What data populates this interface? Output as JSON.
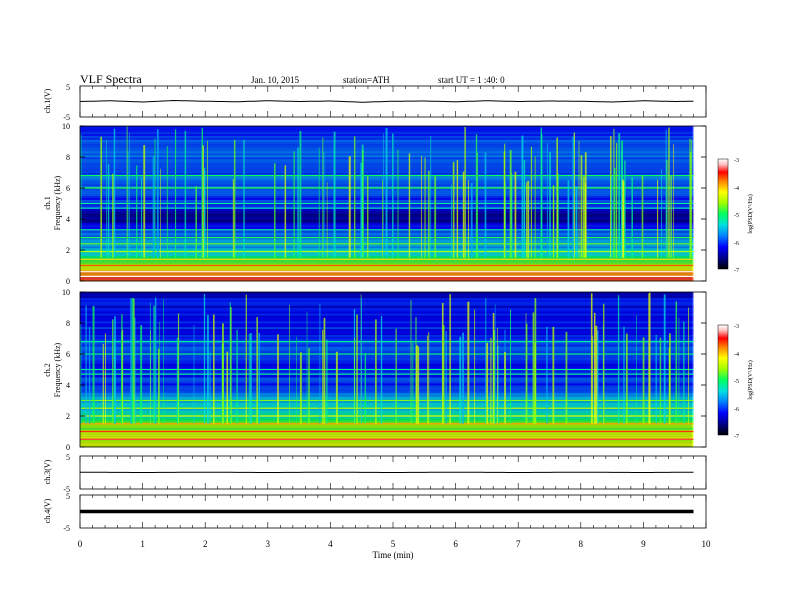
{
  "header": {
    "title": "VLF Spectra",
    "date": "Jan. 10, 2015",
    "station": "station=ATH",
    "start": "start UT = 1 :40: 0"
  },
  "chart_data": [
    {
      "type": "line",
      "ylabel": "ch.1(V)",
      "ylim": [
        -5,
        5
      ],
      "y_ticks": [
        "5",
        "-5"
      ],
      "x": [
        0,
        0.5,
        1,
        1.5,
        2,
        2.5,
        3,
        3.5,
        4,
        4.5,
        5,
        5.5,
        6,
        6.5,
        7,
        7.5,
        8,
        8.5,
        9,
        9.5,
        9.8
      ],
      "y": [
        0.0,
        0.3,
        -0.2,
        0.4,
        0.1,
        -0.1,
        0.3,
        0.0,
        0.2,
        -0.3,
        0.1,
        0.2,
        -0.1,
        0.3,
        0.0,
        0.2,
        0.1,
        -0.2,
        0.3,
        0.0,
        0.1
      ]
    },
    {
      "type": "heatmap",
      "ylabel_lines": [
        "ch.1",
        "Frequency (kHz)"
      ],
      "ylim": [
        0,
        10
      ],
      "y_ticks": [
        "0",
        "2",
        "4",
        "6",
        "8",
        "10"
      ],
      "xlim": [
        0,
        9.8
      ],
      "colorbar": {
        "label": "log(PSD(V²/Hz)",
        "range": [
          -7,
          -3
        ],
        "ticks": [
          "-3",
          "-4",
          "-5",
          "-6",
          "-7"
        ],
        "colors": [
          "#000000",
          "#00008b",
          "#0000ff",
          "#0080ff",
          "#00e0e0",
          "#00ff60",
          "#a0ff00",
          "#ffff00",
          "#ff8000",
          "#ff0000",
          "#ffc0c0",
          "#ffffff"
        ]
      },
      "frequency_profile_kHz": [
        [
          0.1,
          -3.5
        ],
        [
          0.5,
          -3.8
        ],
        [
          1,
          -4.6
        ],
        [
          1.5,
          -5.1
        ],
        [
          2,
          -5.5
        ],
        [
          3,
          -5.9
        ],
        [
          4,
          -6.6
        ],
        [
          5,
          -6.1
        ],
        [
          6,
          -5.8
        ],
        [
          7,
          -5.9
        ],
        [
          8,
          -5.9
        ],
        [
          9,
          -6.0
        ],
        [
          10,
          -6.1
        ]
      ],
      "emission_lines_kHz": [
        0.3,
        0.6,
        1.0,
        1.4,
        1.9,
        2.4,
        2.8,
        3.3,
        4.7,
        5.0,
        6.0,
        6.8
      ]
    },
    {
      "type": "heatmap",
      "ylabel_lines": [
        "ch.2",
        "Frequency (kHz)"
      ],
      "ylim": [
        0,
        10
      ],
      "y_ticks": [
        "0",
        "2",
        "4",
        "6",
        "8",
        "10"
      ],
      "xlim": [
        0,
        9.8
      ],
      "colorbar": {
        "label": "log(PSD(V²/Hz)",
        "range": [
          -7,
          -3
        ],
        "ticks": [
          "-3",
          "-4",
          "-5",
          "-6",
          "-7"
        ],
        "colors": [
          "#000000",
          "#00008b",
          "#0000ff",
          "#0080ff",
          "#00e0e0",
          "#00ff60",
          "#a0ff00",
          "#ffff00",
          "#ff8000",
          "#ff0000",
          "#ffc0c0",
          "#ffffff"
        ]
      },
      "frequency_profile_kHz": [
        [
          0.1,
          -4.5
        ],
        [
          0.5,
          -4.3
        ],
        [
          1,
          -4.5
        ],
        [
          1.5,
          -4.8
        ],
        [
          2,
          -5.2
        ],
        [
          3,
          -5.6
        ],
        [
          4,
          -6.0
        ],
        [
          5,
          -6.1
        ],
        [
          6,
          -6.0
        ],
        [
          7,
          -6.1
        ],
        [
          8,
          -6.1
        ],
        [
          9,
          -6.2
        ],
        [
          10,
          -6.3
        ]
      ],
      "emission_lines_kHz": [
        0.5,
        1.0,
        1.5,
        2.0,
        2.5,
        3.0,
        4.7,
        5.0,
        6.0,
        6.8
      ]
    },
    {
      "type": "line",
      "ylabel": "ch.3(V)",
      "ylim": [
        -5,
        5
      ],
      "y_ticks": [
        "5",
        "-5"
      ],
      "x": [
        0,
        1,
        2,
        3,
        4,
        5,
        6,
        7,
        8,
        9,
        9.8
      ],
      "y": [
        0.1,
        0.0,
        0.1,
        0.0,
        0.1,
        0.0,
        0.1,
        0.0,
        0.1,
        0.0,
        0.1
      ]
    },
    {
      "type": "line",
      "ylabel": "ch.4(V)",
      "ylim": [
        -5,
        5
      ],
      "y_ticks": [
        "5",
        "-5"
      ],
      "x": [
        0,
        1,
        2,
        3,
        4,
        5,
        6,
        7,
        8,
        9,
        9.8
      ],
      "y": [
        0.0,
        0.0,
        0.0,
        0.0,
        0.0,
        0.0,
        0.0,
        0.0,
        0.0,
        0.0,
        0.0
      ]
    }
  ],
  "x_axis": {
    "label": "Time (min)",
    "xlim": [
      0,
      10
    ],
    "ticks": [
      "0",
      "1",
      "2",
      "3",
      "4",
      "5",
      "6",
      "7",
      "8",
      "9",
      "10"
    ]
  }
}
